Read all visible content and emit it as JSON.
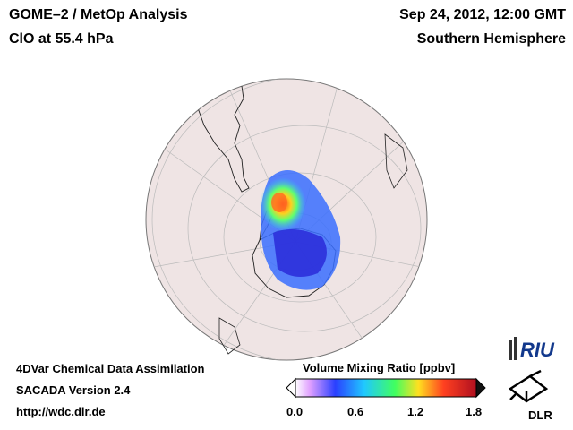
{
  "header": {
    "title": "GOME–2 / MetOp Analysis",
    "species": "ClO at 55.4 hPa",
    "datetime": "Sep 24, 2012, 12:00 GMT",
    "region": "Southern Hemisphere"
  },
  "footer": {
    "method": "4DVar Chemical Data Assimilation",
    "version": "SACADA Version 2.4",
    "url": "http://wdc.dlr.de"
  },
  "colorbar": {
    "title": "Volume Mixing Ratio [ppbv]",
    "ticks": [
      "0.0",
      "0.6",
      "1.2",
      "1.8"
    ],
    "range": [
      0.0,
      1.8
    ]
  },
  "logos": {
    "riu": "RIU",
    "dlr": "DLR"
  },
  "colors": {
    "globe_fill": "#f1e6e6",
    "globe_edge": "#777777",
    "high": "#ff4030",
    "mid": "#3aa0ff",
    "low": "#2a2adf"
  }
}
